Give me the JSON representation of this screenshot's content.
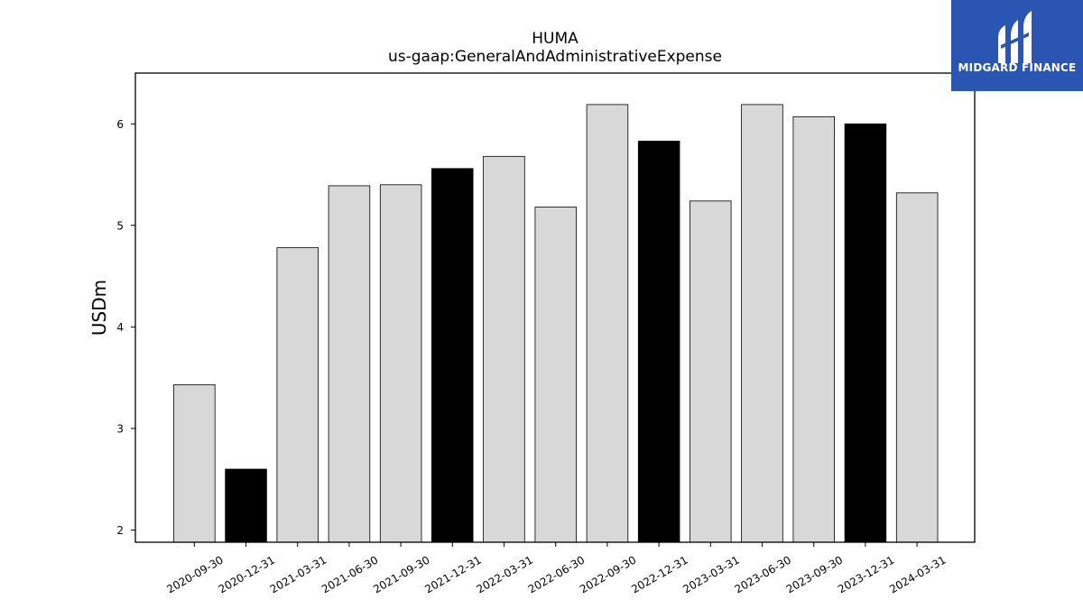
{
  "colors": {
    "bar_default": "#d8d8d8",
    "bar_highlight": "#000000",
    "bar_edge": "#000000",
    "logo_background": "#2b55b2",
    "logo_foreground": "#ffffff"
  },
  "logo": {
    "text": "MIDGARD FINANCE",
    "icon": "midgard-finance-logo-icon"
  },
  "chart_data": {
    "type": "bar",
    "title": "HUMA",
    "subtitle": "us-gaap:GeneralAndAdministrativeExpense",
    "xlabel": "",
    "ylabel": "USDm",
    "ylim": [
      1.88,
      6.5
    ],
    "yticks": [
      2,
      3,
      4,
      5,
      6
    ],
    "grid": false,
    "legend": "none",
    "categories": [
      "2020-09-30",
      "2020-12-31",
      "2021-03-31",
      "2021-06-30",
      "2021-09-30",
      "2021-12-31",
      "2022-03-31",
      "2022-06-30",
      "2022-09-30",
      "2022-12-31",
      "2023-03-31",
      "2023-06-30",
      "2023-09-30",
      "2023-12-31",
      "2024-03-31"
    ],
    "values": [
      3.43,
      2.6,
      4.78,
      5.39,
      5.4,
      5.56,
      5.68,
      5.18,
      6.19,
      5.83,
      5.24,
      6.19,
      6.07,
      6.0,
      5.32
    ],
    "highlighted": [
      false,
      true,
      false,
      false,
      false,
      true,
      false,
      false,
      false,
      true,
      false,
      false,
      false,
      true,
      false
    ]
  }
}
